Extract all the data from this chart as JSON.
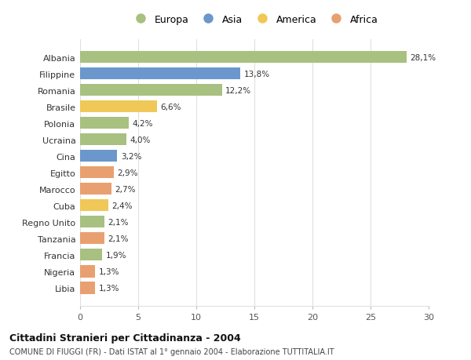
{
  "countries": [
    "Albania",
    "Filippine",
    "Romania",
    "Brasile",
    "Polonia",
    "Ucraina",
    "Cina",
    "Egitto",
    "Marocco",
    "Cuba",
    "Regno Unito",
    "Tanzania",
    "Francia",
    "Nigeria",
    "Libia"
  ],
  "values": [
    28.1,
    13.8,
    12.2,
    6.6,
    4.2,
    4.0,
    3.2,
    2.9,
    2.7,
    2.4,
    2.1,
    2.1,
    1.9,
    1.3,
    1.3
  ],
  "labels": [
    "28,1%",
    "13,8%",
    "12,2%",
    "6,6%",
    "4,2%",
    "4,0%",
    "3,2%",
    "2,9%",
    "2,7%",
    "2,4%",
    "2,1%",
    "2,1%",
    "1,9%",
    "1,3%",
    "1,3%"
  ],
  "continents": [
    "Europa",
    "Asia",
    "Europa",
    "America",
    "Europa",
    "Europa",
    "Asia",
    "Africa",
    "Africa",
    "America",
    "Europa",
    "Africa",
    "Europa",
    "Africa",
    "Africa"
  ],
  "colors": {
    "Europa": "#a8c080",
    "Asia": "#6b97cc",
    "America": "#f0c858",
    "Africa": "#e8a070"
  },
  "legend_order": [
    "Europa",
    "Asia",
    "America",
    "Africa"
  ],
  "title": "Cittadini Stranieri per Cittadinanza - 2004",
  "subtitle": "COMUNE DI FIUGGI (FR) - Dati ISTAT al 1° gennaio 2004 - Elaborazione TUTTITALIA.IT",
  "xlim": [
    0,
    30
  ],
  "xticks": [
    0,
    5,
    10,
    15,
    20,
    25,
    30
  ],
  "background_color": "#ffffff",
  "grid_color": "#e0e0e0"
}
